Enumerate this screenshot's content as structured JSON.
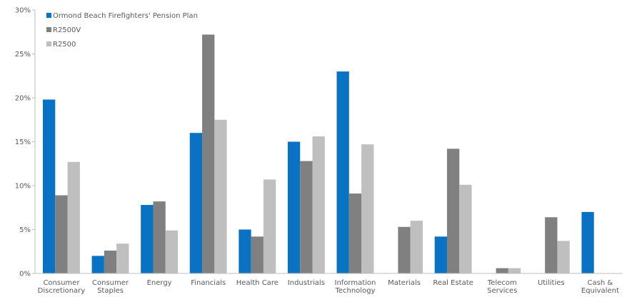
{
  "chart_data": {
    "type": "bar",
    "title": "",
    "xlabel": "",
    "ylabel": "",
    "ylim": [
      0,
      30
    ],
    "y_ticks": [
      0,
      5,
      10,
      15,
      20,
      25,
      30
    ],
    "y_tick_format": "percent",
    "grid": false,
    "legend_placement": "top-left",
    "categories": [
      [
        "Consumer",
        "Discretionary"
      ],
      [
        "Consumer",
        "Staples"
      ],
      [
        "Energy"
      ],
      [
        "Financials"
      ],
      [
        "Health Care"
      ],
      [
        "Industrials"
      ],
      [
        "Information",
        "Technology"
      ],
      [
        "Materials"
      ],
      [
        "Real Estate"
      ],
      [
        "Telecom",
        "Services"
      ],
      [
        "Utilities"
      ],
      [
        "Cash &",
        "Equivalent"
      ]
    ],
    "series": [
      {
        "name": "Ormond Beach Firefighters' Pension Plan",
        "color": "#0a72c2",
        "values": [
          19.8,
          2.0,
          7.8,
          16.0,
          5.0,
          15.0,
          23.0,
          0,
          4.2,
          0,
          0,
          7.0
        ]
      },
      {
        "name": "R2500V",
        "color": "#808080",
        "values": [
          8.9,
          2.6,
          8.2,
          27.2,
          4.2,
          12.8,
          9.1,
          5.3,
          14.2,
          0.6,
          6.4,
          0
        ]
      },
      {
        "name": "R2500",
        "color": "#bfbfbf",
        "values": [
          12.7,
          3.4,
          4.9,
          17.5,
          10.7,
          15.6,
          14.7,
          6.0,
          10.1,
          0.6,
          3.7,
          0
        ]
      }
    ]
  }
}
